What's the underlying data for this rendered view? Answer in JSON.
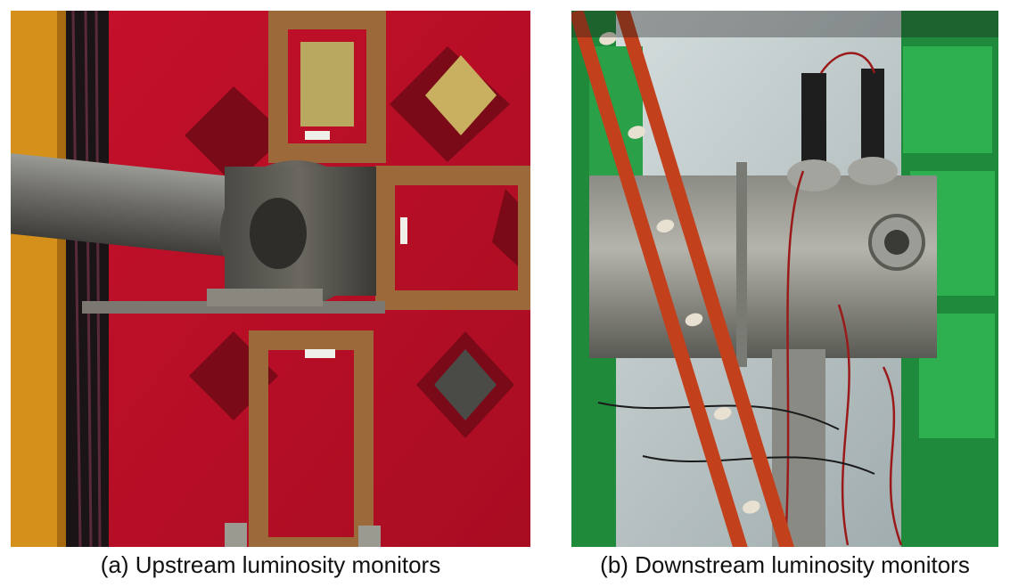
{
  "figure": {
    "panels": [
      {
        "id": "a",
        "caption": "(a) Upstream luminosity monitors"
      },
      {
        "id": "b",
        "caption": "(b) Downstream luminosity monitors"
      }
    ]
  }
}
